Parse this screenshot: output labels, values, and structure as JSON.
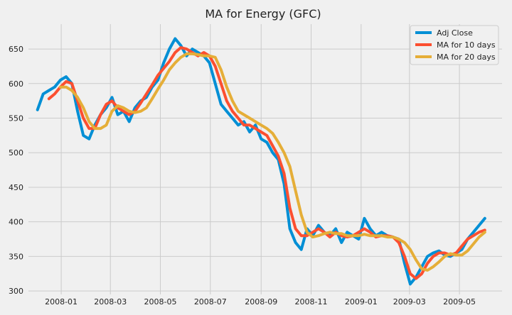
{
  "chart_data": {
    "type": "line",
    "title": "MA for Energy (GFC)",
    "xlabel": "",
    "ylabel": "",
    "x_ticks": [
      "2008-01",
      "2008-03",
      "2008-05",
      "2008-07",
      "2008-09",
      "2008-11",
      "2009-01",
      "2009-03",
      "2009-05"
    ],
    "y_ticks": [
      300,
      350,
      400,
      450,
      500,
      550,
      600,
      650
    ],
    "xlim": [
      "2007-11-22",
      "2009-06-22"
    ],
    "ylim": [
      295,
      686
    ],
    "grid": true,
    "legend_position": "upper right",
    "series": [
      {
        "name": "Adj Close",
        "color": "#008fd5",
        "x": [
          "2007-12-03",
          "2007-12-10",
          "2007-12-17",
          "2007-12-24",
          "2007-12-31",
          "2008-01-07",
          "2008-01-14",
          "2008-01-21",
          "2008-01-28",
          "2008-02-04",
          "2008-02-11",
          "2008-02-18",
          "2008-02-25",
          "2008-03-03",
          "2008-03-10",
          "2008-03-17",
          "2008-03-24",
          "2008-03-31",
          "2008-04-07",
          "2008-04-14",
          "2008-04-21",
          "2008-04-28",
          "2008-05-05",
          "2008-05-12",
          "2008-05-19",
          "2008-05-26",
          "2008-06-02",
          "2008-06-09",
          "2008-06-16",
          "2008-06-23",
          "2008-06-30",
          "2008-07-07",
          "2008-07-14",
          "2008-07-21",
          "2008-07-28",
          "2008-08-04",
          "2008-08-11",
          "2008-08-18",
          "2008-08-25",
          "2008-09-01",
          "2008-09-08",
          "2008-09-15",
          "2008-09-22",
          "2008-09-29",
          "2008-10-06",
          "2008-10-13",
          "2008-10-20",
          "2008-10-27",
          "2008-11-03",
          "2008-11-10",
          "2008-11-17",
          "2008-11-24",
          "2008-12-01",
          "2008-12-08",
          "2008-12-15",
          "2008-12-22",
          "2008-12-29",
          "2009-01-05",
          "2009-01-12",
          "2009-01-19",
          "2009-01-26",
          "2009-02-02",
          "2009-02-09",
          "2009-02-16",
          "2009-02-23",
          "2009-03-02",
          "2009-03-09",
          "2009-03-16",
          "2009-03-23",
          "2009-03-30",
          "2009-04-06",
          "2009-04-13",
          "2009-04-20",
          "2009-04-27",
          "2009-05-04",
          "2009-05-11",
          "2009-05-18",
          "2009-05-25",
          "2009-06-01"
        ],
        "values": [
          562,
          585,
          590,
          595,
          605,
          610,
          600,
          560,
          525,
          520,
          540,
          555,
          565,
          580,
          555,
          560,
          545,
          565,
          575,
          580,
          595,
          605,
          630,
          650,
          665,
          655,
          640,
          650,
          645,
          640,
          630,
          600,
          570,
          560,
          550,
          540,
          545,
          530,
          540,
          520,
          515,
          500,
          490,
          455,
          390,
          370,
          360,
          390,
          380,
          395,
          385,
          380,
          390,
          370,
          385,
          380,
          375,
          405,
          390,
          380,
          385,
          380,
          378,
          375,
          340,
          310,
          320,
          335,
          350,
          355,
          358,
          352,
          350,
          355,
          360,
          375,
          385,
          395,
          405
        ]
      },
      {
        "name": "MA for 10 days",
        "color": "#fc4f30",
        "x": [
          "2007-12-17",
          "2007-12-24",
          "2007-12-31",
          "2008-01-07",
          "2008-01-14",
          "2008-01-21",
          "2008-01-28",
          "2008-02-04",
          "2008-02-11",
          "2008-02-18",
          "2008-02-25",
          "2008-03-03",
          "2008-03-10",
          "2008-03-17",
          "2008-03-24",
          "2008-03-31",
          "2008-04-07",
          "2008-04-14",
          "2008-04-21",
          "2008-04-28",
          "2008-05-05",
          "2008-05-12",
          "2008-05-19",
          "2008-05-26",
          "2008-06-02",
          "2008-06-09",
          "2008-06-16",
          "2008-06-23",
          "2008-06-30",
          "2008-07-07",
          "2008-07-14",
          "2008-07-21",
          "2008-07-28",
          "2008-08-04",
          "2008-08-11",
          "2008-08-18",
          "2008-08-25",
          "2008-09-01",
          "2008-09-08",
          "2008-09-15",
          "2008-09-22",
          "2008-09-29",
          "2008-10-06",
          "2008-10-13",
          "2008-10-20",
          "2008-10-27",
          "2008-11-03",
          "2008-11-10",
          "2008-11-17",
          "2008-11-24",
          "2008-12-01",
          "2008-12-08",
          "2008-12-15",
          "2008-12-22",
          "2008-12-29",
          "2009-01-05",
          "2009-01-12",
          "2009-01-19",
          "2009-01-26",
          "2009-02-02",
          "2009-02-09",
          "2009-02-16",
          "2009-02-23",
          "2009-03-02",
          "2009-03-09",
          "2009-03-16",
          "2009-03-23",
          "2009-03-30",
          "2009-04-06",
          "2009-04-13",
          "2009-04-20",
          "2009-04-27",
          "2009-05-04",
          "2009-05-11",
          "2009-05-18",
          "2009-05-25",
          "2009-06-01"
        ],
        "values": [
          578,
          585,
          595,
          603,
          600,
          575,
          550,
          535,
          535,
          555,
          570,
          575,
          565,
          560,
          555,
          560,
          572,
          585,
          598,
          612,
          622,
          632,
          645,
          652,
          650,
          645,
          640,
          645,
          640,
          625,
          600,
          575,
          560,
          550,
          540,
          540,
          535,
          530,
          525,
          510,
          495,
          470,
          420,
          390,
          380,
          380,
          385,
          390,
          385,
          378,
          385,
          380,
          378,
          380,
          385,
          390,
          385,
          378,
          380,
          380,
          378,
          370,
          350,
          325,
          318,
          325,
          340,
          350,
          355,
          355,
          352,
          355,
          365,
          375,
          380,
          385,
          388
        ]
      },
      {
        "name": "MA for 20 days",
        "color": "#e5ae38",
        "x": [
          "2007-12-31",
          "2008-01-07",
          "2008-01-14",
          "2008-01-21",
          "2008-01-28",
          "2008-02-04",
          "2008-02-11",
          "2008-02-18",
          "2008-02-25",
          "2008-03-03",
          "2008-03-10",
          "2008-03-17",
          "2008-03-24",
          "2008-03-31",
          "2008-04-07",
          "2008-04-14",
          "2008-04-21",
          "2008-04-28",
          "2008-05-05",
          "2008-05-12",
          "2008-05-19",
          "2008-05-26",
          "2008-06-02",
          "2008-06-09",
          "2008-06-16",
          "2008-06-23",
          "2008-06-30",
          "2008-07-07",
          "2008-07-14",
          "2008-07-21",
          "2008-07-28",
          "2008-08-04",
          "2008-08-11",
          "2008-08-18",
          "2008-08-25",
          "2008-09-01",
          "2008-09-08",
          "2008-09-15",
          "2008-09-22",
          "2008-09-29",
          "2008-10-06",
          "2008-10-13",
          "2008-10-20",
          "2008-10-27",
          "2008-11-03",
          "2008-11-10",
          "2008-11-17",
          "2008-11-24",
          "2008-12-01",
          "2008-12-08",
          "2008-12-15",
          "2008-12-22",
          "2008-12-29",
          "2009-01-05",
          "2009-01-12",
          "2009-01-19",
          "2009-01-26",
          "2009-02-02",
          "2009-02-09",
          "2009-02-16",
          "2009-02-23",
          "2009-03-02",
          "2009-03-09",
          "2009-03-16",
          "2009-03-23",
          "2009-03-30",
          "2009-04-06",
          "2009-04-13",
          "2009-04-20",
          "2009-04-27",
          "2009-05-04",
          "2009-05-11",
          "2009-05-18",
          "2009-05-25",
          "2009-06-01"
        ],
        "values": [
          595,
          595,
          590,
          580,
          565,
          545,
          535,
          535,
          540,
          560,
          568,
          565,
          560,
          558,
          560,
          565,
          578,
          592,
          605,
          620,
          630,
          638,
          643,
          643,
          642,
          640,
          640,
          638,
          620,
          595,
          575,
          560,
          555,
          550,
          545,
          540,
          535,
          528,
          515,
          500,
          480,
          445,
          410,
          385,
          378,
          380,
          383,
          385,
          383,
          383,
          380,
          380,
          380,
          382,
          380,
          380,
          380,
          378,
          378,
          375,
          370,
          360,
          345,
          332,
          330,
          335,
          342,
          350,
          354,
          352,
          352,
          358,
          368,
          378,
          385
        ]
      }
    ]
  }
}
